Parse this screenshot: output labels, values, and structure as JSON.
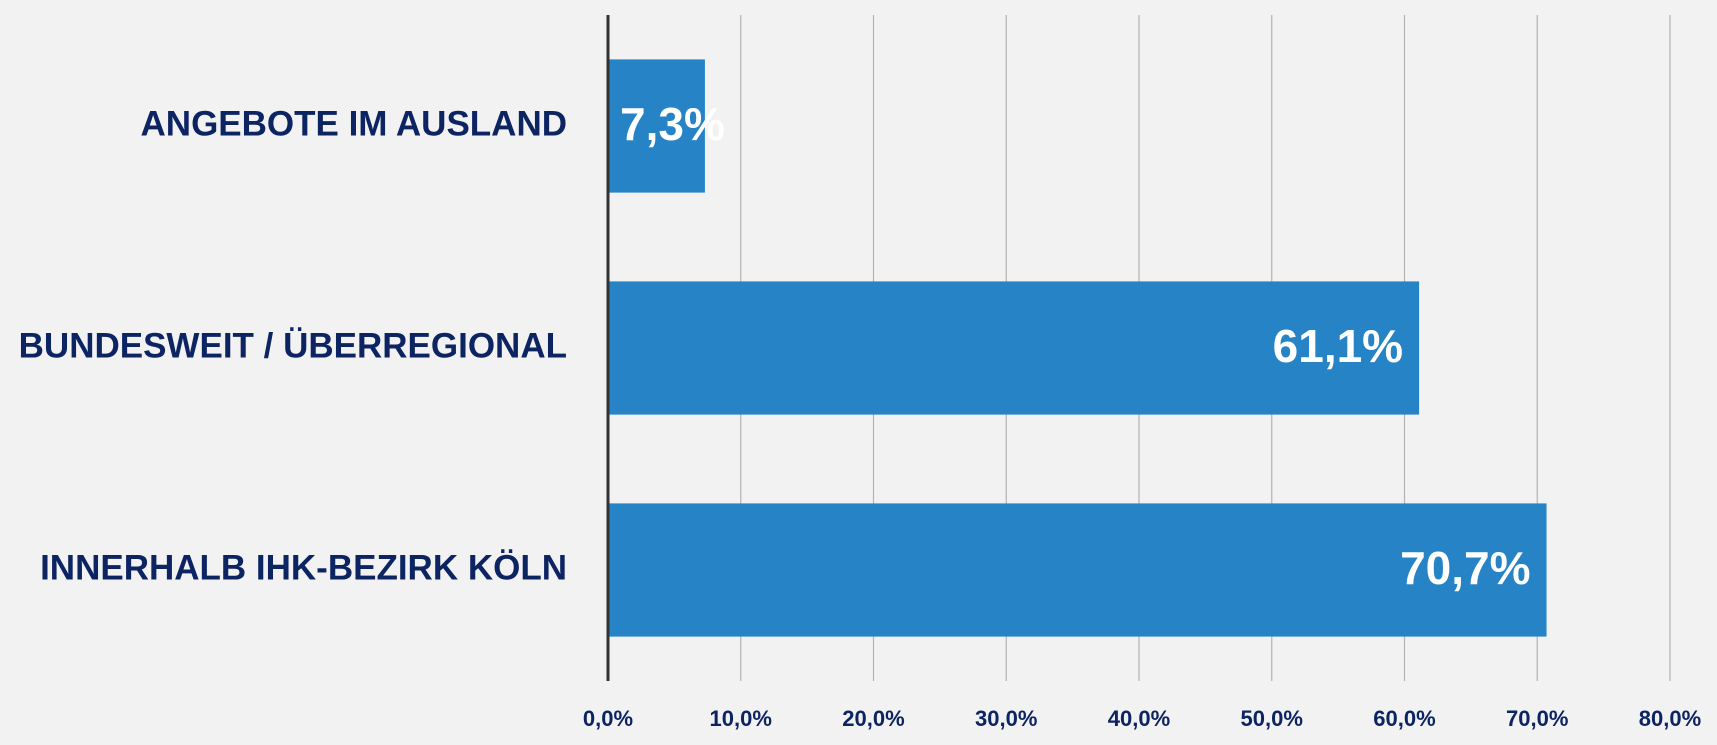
{
  "chart_data": {
    "type": "bar",
    "orientation": "horizontal",
    "categories": [
      "ANGEBOTE IM AUSLAND",
      "BUNDESWEIT / ÜBERREGIONAL",
      "INNERHALB IHK-BEZIRK KÖLN"
    ],
    "values": [
      7.3,
      61.1,
      70.7
    ],
    "value_labels": [
      "7,3%",
      "61,1%",
      "70,7%"
    ],
    "color": "#2683c6",
    "xlim": [
      0,
      80
    ],
    "xticks": [
      {
        "value": 0,
        "label": "0,0%"
      },
      {
        "value": 10,
        "label": "10,0%"
      },
      {
        "value": 20,
        "label": "20,0%"
      },
      {
        "value": 30,
        "label": "30,0%"
      },
      {
        "value": 40,
        "label": "40,0%"
      },
      {
        "value": 50,
        "label": "50,0%"
      },
      {
        "value": 60,
        "label": "60,0%"
      },
      {
        "value": 70,
        "label": "70,0%"
      },
      {
        "value": 80,
        "label": "80,0%"
      }
    ],
    "grid": true
  }
}
